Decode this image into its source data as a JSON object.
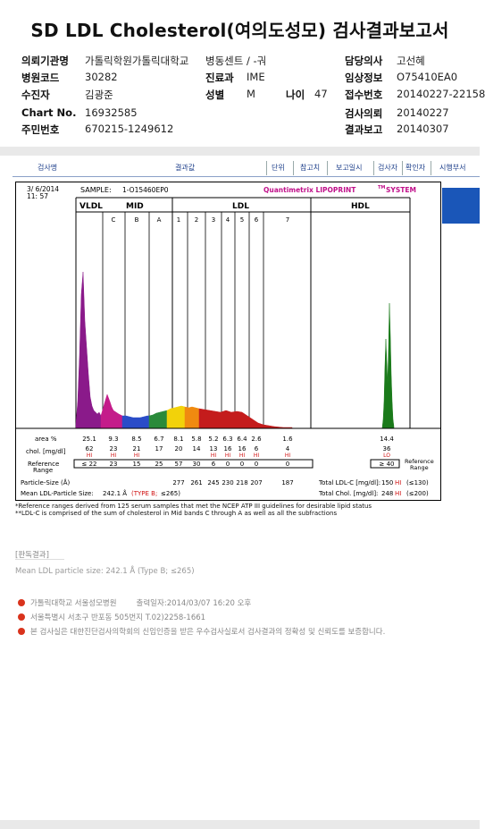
{
  "title": "SD LDL Cholesterol(여의도성모) 검사결과보고서",
  "patient": {
    "institution_label": "의뢰기관명",
    "institution": "가톨릭학원가톨릭대학교",
    "ward_label": "병동센트 / -궈",
    "hospital_code_label": "병원코드",
    "hospital_code": "30282",
    "dept_label": "진료과",
    "dept": "IME",
    "name_label": "수진자",
    "name": "김광준",
    "sex_label": "성별",
    "sex": "M",
    "age_label": "나이",
    "age": "47",
    "chart_label": "Chart No.",
    "chart_no": "16932585",
    "ssn_label": "주민번호",
    "ssn": "670215-1249612",
    "doctor_label": "담당의사",
    "doctor": "고선혜",
    "clinical_label": "임상정보",
    "clinical": "O75410EA0",
    "receipt_label": "접수번호",
    "receipt": "20140227-22158",
    "request_label": "검사의뢰",
    "request_date": "20140227",
    "report_label": "결과보고",
    "report_date": "20140307"
  },
  "report_header": {
    "test_name": "검사명",
    "result": "결과값",
    "unit": "단위",
    "reference": "참고치",
    "report_date": "보고일시",
    "tester": "검사자",
    "confirmer": "확인자",
    "dept": "시행부서"
  },
  "lipoprint": {
    "date": "3/ 6/2014",
    "time": "11: 57",
    "sample_label": "SAMPLE:",
    "sample_id": "1-O15460EP0",
    "brand": "Quantimetrix LIPOPRINT",
    "brand_tm": "TM",
    "brand_system": "SYSTEM",
    "bands": [
      "VLDL",
      "MID",
      "LDL",
      "HDL"
    ],
    "mid_sub": [
      "C",
      "B",
      "A"
    ],
    "ldl_sub": [
      "1",
      "2",
      "3",
      "4",
      "5",
      "6",
      "7"
    ],
    "row_labels": {
      "area": "area %",
      "chol": "chol. [mg/dl]",
      "ref1": "Reference",
      "ref2": "Range",
      "particle": "Particle-Size (Å)",
      "mean": "Mean LDL-Particle Size:"
    },
    "area": [
      "25.1",
      "9.3",
      "8.5",
      "6.7",
      "8.1",
      "5.8",
      "5.2",
      "6.3",
      "6.4",
      "2.6",
      "1.6",
      "14.4"
    ],
    "chol": [
      "62",
      "23",
      "21",
      "17",
      "20",
      "14",
      "13",
      "16",
      "16",
      "6",
      "4",
      "36"
    ],
    "chol_flags": [
      "HI",
      "HI",
      "HI",
      "",
      "",
      "",
      "HI",
      "HI",
      "HI",
      "HI",
      "HI",
      "LO"
    ],
    "ref": [
      "≤ 22",
      "23",
      "15",
      "25",
      "57",
      "30",
      "6",
      "0",
      "0",
      "0",
      "0",
      "≥ 40"
    ],
    "particle": [
      "277",
      "261",
      "245",
      "230",
      "218",
      "207",
      "187"
    ],
    "mean_value": "242.1 Å",
    "mean_type": "(TYPE B;",
    "mean_cutoff": "≤265)",
    "total_ldl_label": "Total LDL-C [mg/dl]:",
    "total_ldl": "150",
    "total_ldl_flag": "HI",
    "total_ldl_ref": "(≤130)",
    "total_chol_label": "Total Chol. [mg/dl]:",
    "total_chol": "248",
    "total_chol_flag": "HI",
    "total_chol_ref": "(≤200)"
  },
  "footnotes": {
    "f1": "*Reference ranges derived from 125 serum samples that met the NCEP ATP III guidelines for desirable lipid status",
    "f2": "**LDL-C is comprised of the sum of cholesterol in Mid bands C through A as well as all the subfractions"
  },
  "findings": {
    "title": "[판독결과]",
    "text": "Mean LDL particle size: 242.1 Å (Type B; ≤265)"
  },
  "footer": {
    "hospital": "가톨릭대학교 서울성모병원",
    "printed": "출력일자:2014/03/07 16:20 오후",
    "address": "서울특별시 서초구 반포동 505번지 T.02)2258-1661",
    "cert": "본 검사실은 대한진단검사의학회의 신임인증을 받은 우수검사실로서 검사결과의 정확성 및 신뢰도를 보증합니다."
  },
  "colors": {
    "vldl": "#8a1a8a",
    "mid_c": "#c41c8a",
    "mid_b": "#2a4cc8",
    "mid_a": "#2a8a3a",
    "ldl1": "#f2d20a",
    "ldl2": "#f08a10",
    "ldl_rest": "#c41c1c",
    "hdl": "#1a7a1a",
    "hi_flag": "#d01010",
    "brand": "#c0108a"
  }
}
